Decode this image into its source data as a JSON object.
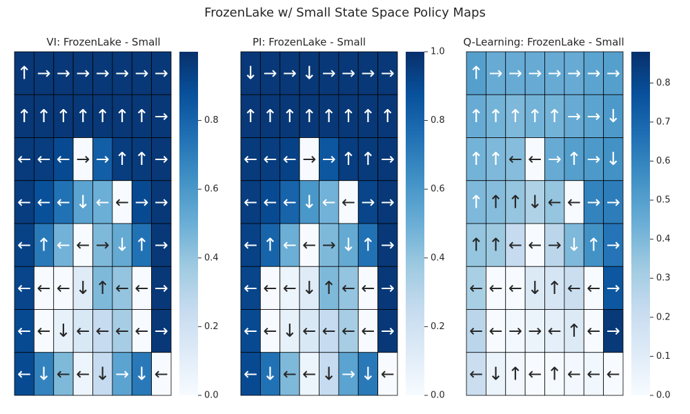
{
  "figure_title": "FrozenLake w/ Small State Space Policy Maps",
  "colors": {
    "cmap": [
      "#f7fbff",
      "#deebf7",
      "#c6dbef",
      "#9ecae1",
      "#6baed6",
      "#4292c6",
      "#2171b5",
      "#08519c",
      "#08306b"
    ],
    "grid_line": "#000000",
    "arrow_on_dark": "#ffffff",
    "arrow_on_light": "#262626"
  },
  "chart_data": [
    {
      "type": "heatmap",
      "title": "VI: FrozenLake - Small",
      "vmin": 0.0,
      "vmax": 1.0,
      "colorbar_ticks": [
        0.0,
        0.2,
        0.4,
        0.6,
        0.8
      ],
      "colorbar_labels": [
        "0.0",
        "0.2",
        "0.4",
        "0.6",
        "0.8"
      ],
      "values": [
        [
          0.97,
          0.97,
          0.97,
          0.97,
          0.97,
          0.97,
          0.97,
          0.97
        ],
        [
          0.97,
          0.97,
          0.97,
          0.97,
          0.97,
          0.97,
          0.97,
          0.97
        ],
        [
          0.96,
          0.95,
          0.9,
          0.0,
          0.82,
          0.95,
          0.96,
          0.97
        ],
        [
          0.95,
          0.88,
          0.75,
          0.55,
          0.5,
          0.0,
          0.9,
          0.97
        ],
        [
          0.93,
          0.72,
          0.48,
          0.0,
          0.45,
          0.52,
          0.75,
          0.97
        ],
        [
          0.92,
          0.0,
          0.0,
          0.12,
          0.45,
          0.4,
          0.0,
          0.97
        ],
        [
          0.9,
          0.0,
          0.08,
          0.15,
          0.25,
          0.35,
          0.0,
          0.97
        ],
        [
          0.9,
          0.68,
          0.45,
          0.05,
          0.25,
          0.55,
          0.72,
          0.0
        ]
      ],
      "policy": [
        [
          "up",
          "right",
          "right",
          "right",
          "right",
          "right",
          "right",
          "right"
        ],
        [
          "up",
          "up",
          "up",
          "up",
          "up",
          "up",
          "up",
          "right"
        ],
        [
          "left",
          "left",
          "left",
          "right",
          "right",
          "up",
          "up",
          "right"
        ],
        [
          "left",
          "left",
          "left",
          "down",
          "left",
          "left",
          "right",
          "right"
        ],
        [
          "left",
          "up",
          "left",
          "left",
          "right",
          "down",
          "up",
          "right"
        ],
        [
          "left",
          "left",
          "left",
          "down",
          "up",
          "left",
          "left",
          "right"
        ],
        [
          "left",
          "left",
          "down",
          "left",
          "left",
          "left",
          "left",
          "right"
        ],
        [
          "left",
          "down",
          "left",
          "left",
          "down",
          "right",
          "down",
          "left"
        ]
      ]
    },
    {
      "type": "heatmap",
      "title": "PI: FrozenLake - Small",
      "vmin": 0.0,
      "vmax": 1.0,
      "colorbar_ticks": [
        0.0,
        0.2,
        0.4,
        0.6,
        0.8,
        1.0
      ],
      "colorbar_labels": [
        "0.0",
        "0.2",
        "0.4",
        "0.6",
        "0.8",
        "1.0"
      ],
      "values": [
        [
          0.97,
          0.97,
          0.97,
          0.97,
          0.97,
          0.97,
          0.97,
          0.97
        ],
        [
          0.97,
          0.97,
          0.97,
          0.97,
          0.97,
          0.97,
          0.97,
          0.97
        ],
        [
          0.96,
          0.95,
          0.93,
          0.0,
          0.85,
          0.95,
          0.96,
          0.97
        ],
        [
          0.95,
          0.9,
          0.8,
          0.6,
          0.48,
          0.0,
          0.92,
          0.97
        ],
        [
          0.93,
          0.8,
          0.5,
          0.0,
          0.45,
          0.52,
          0.75,
          0.97
        ],
        [
          0.92,
          0.0,
          0.05,
          0.12,
          0.45,
          0.4,
          0.0,
          0.97
        ],
        [
          0.9,
          0.0,
          0.08,
          0.15,
          0.25,
          0.35,
          0.0,
          0.97
        ],
        [
          0.9,
          0.75,
          0.45,
          0.05,
          0.25,
          0.55,
          0.72,
          0.0
        ]
      ],
      "policy": [
        [
          "down",
          "right",
          "right",
          "down",
          "right",
          "right",
          "right",
          "right"
        ],
        [
          "up",
          "up",
          "up",
          "up",
          "up",
          "up",
          "up",
          "up"
        ],
        [
          "left",
          "left",
          "left",
          "right",
          "right",
          "up",
          "up",
          "right"
        ],
        [
          "left",
          "left",
          "left",
          "down",
          "left",
          "left",
          "right",
          "right"
        ],
        [
          "left",
          "up",
          "left",
          "left",
          "right",
          "down",
          "up",
          "right"
        ],
        [
          "left",
          "left",
          "left",
          "down",
          "up",
          "left",
          "left",
          "right"
        ],
        [
          "left",
          "left",
          "down",
          "left",
          "left",
          "left",
          "left",
          "right"
        ],
        [
          "left",
          "down",
          "left",
          "left",
          "down",
          "right",
          "down",
          "left"
        ]
      ]
    },
    {
      "type": "heatmap",
      "title": "Q-Learning: FrozenLake - Small",
      "vmin": 0.0,
      "vmax": 0.88,
      "colorbar_ticks": [
        0.0,
        0.1,
        0.2,
        0.3,
        0.4,
        0.5,
        0.6,
        0.7,
        0.8
      ],
      "colorbar_labels": [
        "0.0",
        "0.1",
        "0.2",
        "0.3",
        "0.4",
        "0.5",
        "0.6",
        "0.7",
        "0.8"
      ],
      "values": [
        [
          0.5,
          0.45,
          0.45,
          0.45,
          0.45,
          0.45,
          0.48,
          0.5
        ],
        [
          0.45,
          0.42,
          0.4,
          0.42,
          0.42,
          0.45,
          0.48,
          0.52
        ],
        [
          0.42,
          0.4,
          0.38,
          0.0,
          0.45,
          0.5,
          0.52,
          0.55
        ],
        [
          0.4,
          0.38,
          0.35,
          0.28,
          0.35,
          0.0,
          0.6,
          0.62
        ],
        [
          0.35,
          0.33,
          0.22,
          0.0,
          0.25,
          0.4,
          0.55,
          0.65
        ],
        [
          0.3,
          0.0,
          0.0,
          0.12,
          0.15,
          0.2,
          0.0,
          0.75
        ],
        [
          0.25,
          0.0,
          0.02,
          0.05,
          0.08,
          0.12,
          0.0,
          0.85
        ],
        [
          0.2,
          0.05,
          0.02,
          0.0,
          0.01,
          0.02,
          0.03,
          0.0
        ]
      ],
      "policy": [
        [
          "up",
          "right",
          "right",
          "right",
          "right",
          "right",
          "right",
          "right"
        ],
        [
          "up",
          "up",
          "up",
          "up",
          "up",
          "right",
          "right",
          "down"
        ],
        [
          "up",
          "up",
          "left",
          "left",
          "right",
          "up",
          "right",
          "down"
        ],
        [
          "up",
          "up",
          "up",
          "down",
          "left",
          "left",
          "right",
          "right"
        ],
        [
          "up",
          "up",
          "left",
          "left",
          "right",
          "down",
          "up",
          "right"
        ],
        [
          "left",
          "left",
          "left",
          "down",
          "up",
          "left",
          "left",
          "right"
        ],
        [
          "left",
          "left",
          "right",
          "right",
          "left",
          "up",
          "left",
          "right"
        ],
        [
          "left",
          "down",
          "up",
          "left",
          "up",
          "left",
          "left",
          "left"
        ]
      ]
    }
  ]
}
